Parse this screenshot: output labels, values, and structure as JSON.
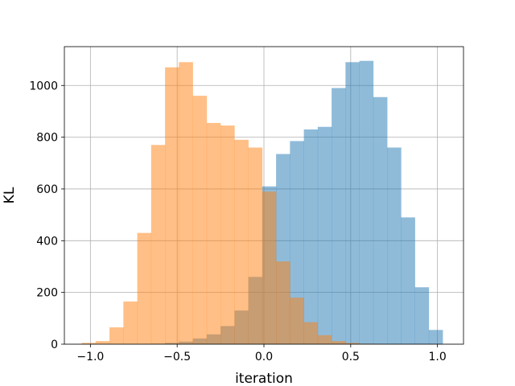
{
  "chart_data": {
    "type": "bar",
    "title": "",
    "xlabel": "iteration",
    "ylabel": "KL",
    "xlim": [
      -1.15,
      1.15
    ],
    "ylim": [
      0,
      1150
    ],
    "grid": true,
    "bin_width": 0.08,
    "x_ticks": [
      -1.0,
      -0.5,
      0.0,
      0.5,
      1.0
    ],
    "x_tick_labels": [
      "−1.0",
      "−0.5",
      "0.0",
      "0.5",
      "1.0"
    ],
    "y_ticks": [
      0,
      200,
      400,
      600,
      800,
      1000
    ],
    "y_tick_labels": [
      "0",
      "200",
      "400",
      "600",
      "800",
      "1000"
    ],
    "series": [
      {
        "color": "#1f77b4",
        "opacity": 0.5,
        "bin_starts": [
          -0.65,
          -0.57,
          -0.49,
          -0.41,
          -0.33,
          -0.25,
          -0.17,
          -0.09,
          -0.01,
          0.07,
          0.15,
          0.23,
          0.31,
          0.39,
          0.47,
          0.55,
          0.63,
          0.71,
          0.79,
          0.87,
          0.95
        ],
        "values": [
          2,
          5,
          10,
          22,
          38,
          70,
          130,
          260,
          610,
          735,
          785,
          830,
          840,
          990,
          1090,
          1095,
          955,
          760,
          490,
          220,
          55
        ]
      },
      {
        "color": "#ff7f0e",
        "opacity": 0.5,
        "bin_starts": [
          -1.05,
          -0.97,
          -0.89,
          -0.81,
          -0.73,
          -0.65,
          -0.57,
          -0.49,
          -0.41,
          -0.33,
          -0.25,
          -0.17,
          -0.09,
          -0.01,
          0.07,
          0.15,
          0.23,
          0.31,
          0.39,
          0.47,
          0.55,
          0.63
        ],
        "values": [
          5,
          12,
          65,
          165,
          430,
          770,
          1070,
          1090,
          960,
          855,
          845,
          790,
          760,
          590,
          320,
          180,
          85,
          35,
          12,
          5,
          2,
          1
        ]
      }
    ]
  }
}
